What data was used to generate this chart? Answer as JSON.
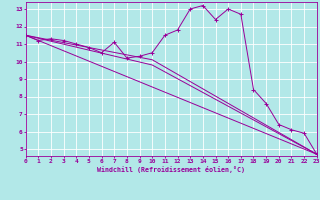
{
  "xlabel": "Windchill (Refroidissement éolien,°C)",
  "bg_color": "#b2e8e8",
  "grid_color": "#ffffff",
  "line_color": "#990099",
  "xlim": [
    0,
    23
  ],
  "ylim": [
    4.6,
    13.4
  ],
  "yticks": [
    5,
    6,
    7,
    8,
    9,
    10,
    11,
    12,
    13
  ],
  "xticks": [
    0,
    1,
    2,
    3,
    4,
    5,
    6,
    7,
    8,
    9,
    10,
    11,
    12,
    13,
    14,
    15,
    16,
    17,
    18,
    19,
    20,
    21,
    22,
    23
  ],
  "series1_x": [
    0,
    1,
    2,
    3,
    4,
    5,
    6,
    7,
    8,
    9,
    10,
    11,
    12,
    13,
    14,
    15,
    16,
    17,
    18,
    19,
    20,
    21,
    22,
    23
  ],
  "series1_y": [
    11.5,
    11.2,
    11.3,
    11.2,
    11.0,
    10.8,
    10.5,
    11.1,
    10.2,
    10.3,
    10.5,
    11.5,
    11.8,
    13.0,
    13.2,
    12.4,
    13.0,
    12.7,
    8.4,
    7.6,
    6.4,
    6.1,
    5.9,
    4.7
  ],
  "trend1_x": [
    0,
    23
  ],
  "trend1_y": [
    11.5,
    4.7
  ],
  "trend2_x": [
    0,
    10,
    23
  ],
  "trend2_y": [
    11.5,
    10.1,
    4.7
  ],
  "trend3_x": [
    0,
    10,
    23
  ],
  "trend3_y": [
    11.5,
    9.8,
    4.7
  ]
}
